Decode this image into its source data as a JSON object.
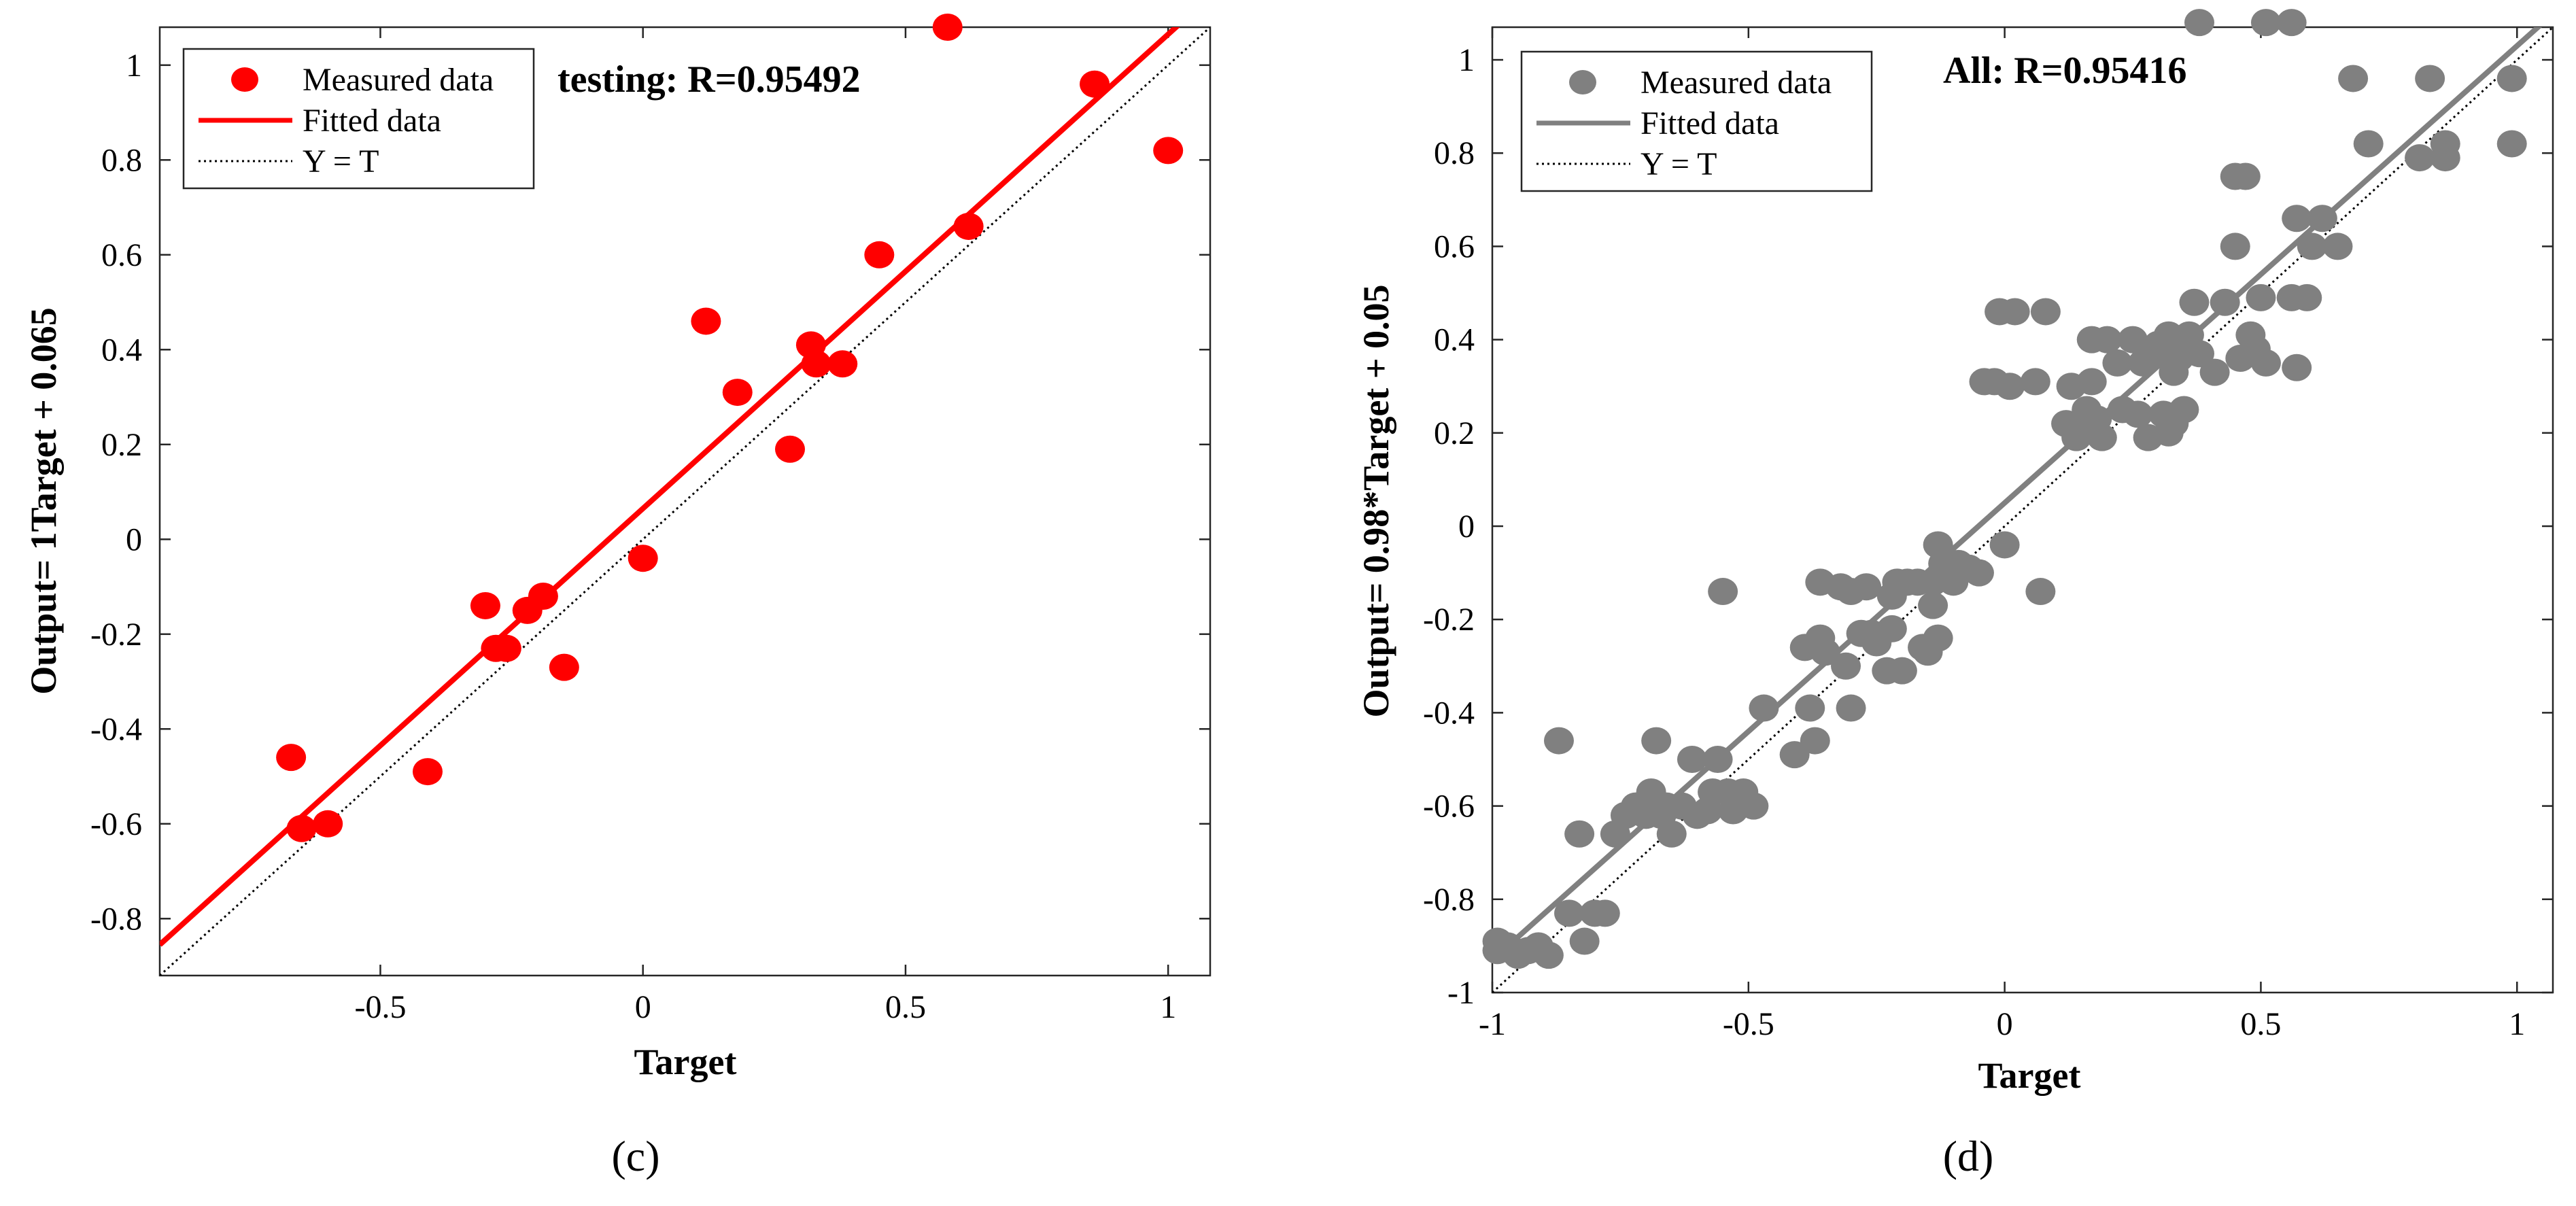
{
  "chart_data": [
    {
      "type": "scatter",
      "panel": "c",
      "title": "testing: R=0.95492",
      "xlabel": "Target",
      "ylabel": "Output= 1Target + 0.065",
      "xlim": [
        -0.92,
        1.08
      ],
      "ylim": [
        -0.92,
        1.08
      ],
      "xticks": [
        -0.5,
        0,
        0.5,
        1
      ],
      "xtick_labels": [
        "-0.5",
        "0",
        "0.5",
        "1"
      ],
      "yticks": [
        -0.8,
        -0.6,
        -0.4,
        -0.2,
        0,
        0.2,
        0.4,
        0.6,
        0.8,
        1
      ],
      "ytick_labels": [
        "-0.8",
        "-0.6",
        "-0.4",
        "-0.2",
        "0",
        "0.2",
        "0.4",
        "0.6",
        "0.8",
        "1"
      ],
      "color": "#ff0000",
      "legend": [
        "Measured data",
        "Fitted data",
        "Y = T"
      ],
      "legend_position": "top-left",
      "fit": {
        "slope": 1.0,
        "intercept": 0.065
      },
      "points": [
        [
          -0.67,
          -0.46
        ],
        [
          -0.65,
          -0.61
        ],
        [
          -0.6,
          -0.6
        ],
        [
          -0.41,
          -0.49
        ],
        [
          -0.3,
          -0.14
        ],
        [
          -0.28,
          -0.23
        ],
        [
          -0.26,
          -0.23
        ],
        [
          -0.22,
          -0.15
        ],
        [
          -0.19,
          -0.12
        ],
        [
          -0.15,
          -0.27
        ],
        [
          0.0,
          -0.04
        ],
        [
          0.12,
          0.46
        ],
        [
          0.18,
          0.31
        ],
        [
          0.28,
          0.19
        ],
        [
          0.32,
          0.41
        ],
        [
          0.33,
          0.37
        ],
        [
          0.38,
          0.37
        ],
        [
          0.45,
          0.6
        ],
        [
          0.58,
          1.08
        ],
        [
          0.62,
          0.66
        ],
        [
          0.86,
          0.96
        ],
        [
          1.0,
          0.82
        ]
      ],
      "caption": "(c)"
    },
    {
      "type": "scatter",
      "panel": "d",
      "title": "All: R=0.95416",
      "xlabel": "Target",
      "ylabel": "Output= 0.98*Target + 0.05",
      "xlim": [
        -1.0,
        1.07
      ],
      "ylim": [
        -1.0,
        1.07
      ],
      "xticks": [
        -1,
        -0.5,
        0,
        0.5,
        1
      ],
      "xtick_labels": [
        "-1",
        "-0.5",
        "0",
        "0.5",
        "1"
      ],
      "yticks": [
        -1,
        -0.8,
        -0.6,
        -0.4,
        -0.2,
        0,
        0.2,
        0.4,
        0.6,
        0.8,
        1
      ],
      "ytick_labels": [
        "-1",
        "-0.8",
        "-0.6",
        "-0.4",
        "-0.2",
        "0",
        "0.2",
        "0.4",
        "0.6",
        "0.8",
        "1"
      ],
      "color": "#808080",
      "legend": [
        "Measured data",
        "Fitted data",
        "Y = T"
      ],
      "legend_position": "top-left",
      "fit": {
        "slope": 0.98,
        "intercept": 0.05
      },
      "points": [
        [
          -0.99,
          -0.89
        ],
        [
          -0.99,
          -0.91
        ],
        [
          -0.97,
          -0.9
        ],
        [
          -0.95,
          -0.92
        ],
        [
          -0.93,
          -0.91
        ],
        [
          -0.91,
          -0.9
        ],
        [
          -0.89,
          -0.92
        ],
        [
          -0.87,
          -0.46
        ],
        [
          -0.85,
          -0.83
        ],
        [
          -0.83,
          -0.66
        ],
        [
          -0.82,
          -0.89
        ],
        [
          -0.8,
          -0.83
        ],
        [
          -0.78,
          -0.83
        ],
        [
          -0.76,
          -0.66
        ],
        [
          -0.74,
          -0.62
        ],
        [
          -0.72,
          -0.6
        ],
        [
          -0.7,
          -0.62
        ],
        [
          -0.69,
          -0.57
        ],
        [
          -0.68,
          -0.46
        ],
        [
          -0.67,
          -0.62
        ],
        [
          -0.66,
          -0.6
        ],
        [
          -0.65,
          -0.66
        ],
        [
          -0.63,
          -0.6
        ],
        [
          -0.61,
          -0.5
        ],
        [
          -0.6,
          -0.62
        ],
        [
          -0.58,
          -0.61
        ],
        [
          -0.57,
          -0.57
        ],
        [
          -0.56,
          -0.5
        ],
        [
          -0.55,
          -0.14
        ],
        [
          -0.54,
          -0.57
        ],
        [
          -0.53,
          -0.61
        ],
        [
          -0.51,
          -0.57
        ],
        [
          -0.49,
          -0.6
        ],
        [
          -0.47,
          -0.39
        ],
        [
          -0.41,
          -0.49
        ],
        [
          -0.39,
          -0.26
        ],
        [
          -0.38,
          -0.39
        ],
        [
          -0.37,
          -0.46
        ],
        [
          -0.36,
          -0.24
        ],
        [
          -0.36,
          -0.12
        ],
        [
          -0.35,
          -0.27
        ],
        [
          -0.32,
          -0.13
        ],
        [
          -0.31,
          -0.3
        ],
        [
          -0.3,
          -0.14
        ],
        [
          -0.3,
          -0.39
        ],
        [
          -0.28,
          -0.23
        ],
        [
          -0.27,
          -0.13
        ],
        [
          -0.26,
          -0.23
        ],
        [
          -0.25,
          -0.25
        ],
        [
          -0.23,
          -0.31
        ],
        [
          -0.22,
          -0.15
        ],
        [
          -0.22,
          -0.22
        ],
        [
          -0.21,
          -0.12
        ],
        [
          -0.2,
          -0.31
        ],
        [
          -0.19,
          -0.12
        ],
        [
          -0.17,
          -0.12
        ],
        [
          -0.16,
          -0.26
        ],
        [
          -0.15,
          -0.27
        ],
        [
          -0.14,
          -0.12
        ],
        [
          -0.14,
          -0.17
        ],
        [
          -0.13,
          -0.04
        ],
        [
          -0.13,
          -0.24
        ],
        [
          -0.12,
          -0.08
        ],
        [
          -0.11,
          -0.1
        ],
        [
          -0.1,
          -0.12
        ],
        [
          -0.09,
          -0.08
        ],
        [
          -0.07,
          -0.09
        ],
        [
          -0.05,
          -0.1
        ],
        [
          -0.04,
          0.31
        ],
        [
          -0.02,
          0.31
        ],
        [
          -0.01,
          0.46
        ],
        [
          0.0,
          -0.04
        ],
        [
          0.01,
          0.3
        ],
        [
          0.02,
          0.46
        ],
        [
          0.06,
          0.31
        ],
        [
          0.07,
          -0.14
        ],
        [
          0.08,
          0.46
        ],
        [
          0.12,
          0.22
        ],
        [
          0.13,
          0.3
        ],
        [
          0.14,
          0.19
        ],
        [
          0.15,
          0.2
        ],
        [
          0.16,
          0.25
        ],
        [
          0.17,
          0.4
        ],
        [
          0.17,
          0.31
        ],
        [
          0.18,
          0.23
        ],
        [
          0.19,
          0.19
        ],
        [
          0.2,
          0.4
        ],
        [
          0.22,
          0.35
        ],
        [
          0.23,
          0.25
        ],
        [
          0.25,
          0.4
        ],
        [
          0.26,
          0.24
        ],
        [
          0.27,
          0.35
        ],
        [
          0.28,
          0.19
        ],
        [
          0.28,
          0.36
        ],
        [
          0.29,
          0.37
        ],
        [
          0.3,
          0.39
        ],
        [
          0.31,
          0.24
        ],
        [
          0.32,
          0.41
        ],
        [
          0.32,
          0.2
        ],
        [
          0.33,
          0.33
        ],
        [
          0.33,
          0.22
        ],
        [
          0.34,
          0.36
        ],
        [
          0.35,
          0.25
        ],
        [
          0.36,
          0.41
        ],
        [
          0.37,
          0.48
        ],
        [
          0.38,
          1.08
        ],
        [
          0.38,
          0.37
        ],
        [
          0.41,
          0.33
        ],
        [
          0.43,
          0.48
        ],
        [
          0.45,
          0.6
        ],
        [
          0.45,
          0.75
        ],
        [
          0.46,
          0.36
        ],
        [
          0.47,
          0.75
        ],
        [
          0.48,
          0.41
        ],
        [
          0.49,
          0.38
        ],
        [
          0.5,
          0.49
        ],
        [
          0.51,
          1.08
        ],
        [
          0.51,
          0.35
        ],
        [
          0.56,
          1.08
        ],
        [
          0.56,
          0.49
        ],
        [
          0.57,
          0.34
        ],
        [
          0.57,
          0.66
        ],
        [
          0.59,
          0.49
        ],
        [
          0.6,
          0.6
        ],
        [
          0.62,
          0.66
        ],
        [
          0.65,
          0.6
        ],
        [
          0.68,
          0.96
        ],
        [
          0.71,
          0.82
        ],
        [
          0.81,
          0.79
        ],
        [
          0.83,
          0.96
        ],
        [
          0.86,
          0.82
        ],
        [
          0.86,
          0.79
        ],
        [
          0.99,
          0.96
        ],
        [
          0.99,
          0.82
        ]
      ],
      "caption": "(d)"
    }
  ]
}
